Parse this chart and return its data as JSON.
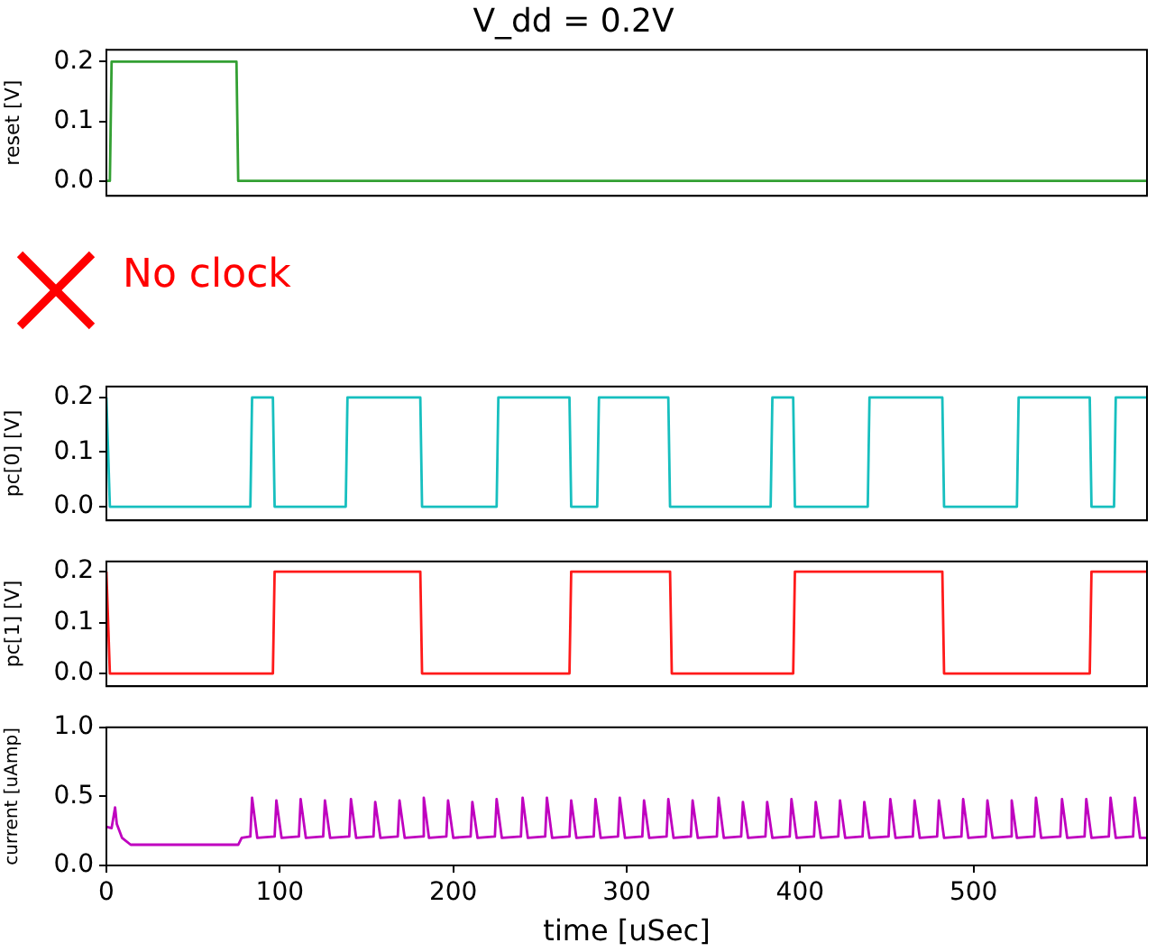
{
  "chart_data": [
    {
      "type": "line",
      "title": "V_dd = 0.2V",
      "ylabel": "reset [V]",
      "color": "#33a033",
      "marker": "none",
      "tick_labels": "y",
      "x": [
        0,
        2,
        3,
        75,
        76,
        600
      ],
      "values": [
        0,
        0,
        0.2,
        0.2,
        0,
        0
      ],
      "xlim": [
        0,
        600
      ],
      "ylim": [
        -0.025,
        0.22
      ],
      "yticks": [
        {
          "value": 0,
          "label": "0.0"
        },
        {
          "value": 0.1,
          "label": "0.1"
        },
        {
          "value": 0.2,
          "label": "0.2"
        }
      ]
    },
    {
      "type": "other",
      "annotations": [
        "No clock"
      ]
    },
    {
      "type": "line",
      "ylabel": "pc[0] [V]",
      "color": "#17bfbf",
      "marker": "none",
      "tick_labels": "y",
      "x": [
        0,
        2,
        83,
        84,
        96,
        97,
        138,
        139,
        181,
        182,
        225,
        226,
        267,
        268,
        283,
        284,
        324,
        325,
        383,
        384,
        396,
        397,
        439,
        440,
        482,
        483,
        525,
        526,
        567,
        568,
        581,
        582,
        600
      ],
      "values": [
        0.2,
        0,
        0,
        0.2,
        0.2,
        0,
        0,
        0.2,
        0.2,
        0,
        0,
        0.2,
        0.2,
        0,
        0,
        0.2,
        0.2,
        0,
        0,
        0.2,
        0.2,
        0,
        0,
        0.2,
        0.2,
        0,
        0,
        0.2,
        0.2,
        0,
        0,
        0.2,
        0.2
      ],
      "xlim": [
        0,
        600
      ],
      "ylim": [
        -0.025,
        0.22
      ],
      "yticks": [
        {
          "value": 0,
          "label": "0.0"
        },
        {
          "value": 0.1,
          "label": "0.1"
        },
        {
          "value": 0.2,
          "label": "0.2"
        }
      ]
    },
    {
      "type": "line",
      "ylabel": "pc[1] [V]",
      "color": "#ff1a1a",
      "marker": "none",
      "tick_labels": "y",
      "x": [
        0,
        2,
        96,
        97,
        181,
        182,
        267,
        268,
        325,
        326,
        396,
        397,
        482,
        483,
        567,
        568,
        600
      ],
      "values": [
        0.2,
        0,
        0,
        0.2,
        0.2,
        0,
        0,
        0.2,
        0.2,
        0,
        0,
        0.2,
        0.2,
        0,
        0,
        0.2,
        0.2
      ],
      "xlim": [
        0,
        600
      ],
      "ylim": [
        -0.025,
        0.22
      ],
      "yticks": [
        {
          "value": 0,
          "label": "0.0"
        },
        {
          "value": 0.1,
          "label": "0.1"
        },
        {
          "value": 0.2,
          "label": "0.2"
        }
      ]
    },
    {
      "type": "line",
      "xlabel": "time [uSec]",
      "ylabel": "current [uAmp]",
      "color": "#bf00bf",
      "marker": "none",
      "x": [
        0,
        3,
        5,
        6,
        9,
        14,
        76,
        78,
        83,
        84,
        87,
        97,
        98,
        101,
        111,
        112,
        115,
        125,
        126,
        129,
        140,
        141,
        144,
        154,
        155,
        158,
        168,
        169,
        172,
        182,
        183,
        186,
        196,
        197,
        200,
        210,
        211,
        214,
        224,
        225,
        228,
        239,
        240,
        243,
        253,
        254,
        257,
        267,
        268,
        271,
        281,
        282,
        285,
        295,
        296,
        299,
        309,
        310,
        313,
        323,
        324,
        327,
        337,
        338,
        341,
        352,
        353,
        356,
        366,
        367,
        370,
        380,
        381,
        384,
        394,
        395,
        398,
        408,
        409,
        412,
        422,
        423,
        426,
        436,
        437,
        440,
        451,
        452,
        455,
        465,
        466,
        469,
        479,
        480,
        483,
        493,
        494,
        497,
        507,
        508,
        511,
        521,
        522,
        525,
        535,
        536,
        539,
        550,
        551,
        554,
        564,
        565,
        568,
        578,
        579,
        582,
        592,
        593,
        596,
        600
      ],
      "values": [
        0.28,
        0.27,
        0.42,
        0.3,
        0.2,
        0.15,
        0.15,
        0.2,
        0.21,
        0.49,
        0.2,
        0.21,
        0.47,
        0.2,
        0.21,
        0.48,
        0.2,
        0.21,
        0.47,
        0.2,
        0.21,
        0.48,
        0.2,
        0.21,
        0.46,
        0.2,
        0.21,
        0.47,
        0.2,
        0.21,
        0.49,
        0.2,
        0.21,
        0.47,
        0.2,
        0.21,
        0.46,
        0.2,
        0.21,
        0.48,
        0.2,
        0.21,
        0.49,
        0.2,
        0.21,
        0.49,
        0.2,
        0.21,
        0.47,
        0.2,
        0.21,
        0.48,
        0.2,
        0.21,
        0.49,
        0.2,
        0.21,
        0.47,
        0.2,
        0.21,
        0.48,
        0.2,
        0.21,
        0.47,
        0.2,
        0.21,
        0.49,
        0.2,
        0.21,
        0.46,
        0.2,
        0.21,
        0.46,
        0.2,
        0.21,
        0.48,
        0.2,
        0.21,
        0.46,
        0.2,
        0.21,
        0.47,
        0.2,
        0.21,
        0.46,
        0.2,
        0.21,
        0.48,
        0.2,
        0.21,
        0.47,
        0.2,
        0.21,
        0.47,
        0.2,
        0.21,
        0.48,
        0.2,
        0.21,
        0.47,
        0.2,
        0.21,
        0.47,
        0.2,
        0.21,
        0.49,
        0.2,
        0.21,
        0.48,
        0.2,
        0.21,
        0.48,
        0.2,
        0.21,
        0.49,
        0.2,
        0.21,
        0.49,
        0.2,
        0.2
      ],
      "xlim": [
        0,
        600
      ],
      "xticks": [
        0,
        100,
        200,
        300,
        400,
        500
      ],
      "ylim": [
        0,
        1
      ],
      "yticks": [
        {
          "value": 0,
          "label": "0.0"
        },
        {
          "value": 0.5,
          "label": "0.5"
        },
        {
          "value": 1,
          "label": "1.0"
        }
      ]
    }
  ]
}
